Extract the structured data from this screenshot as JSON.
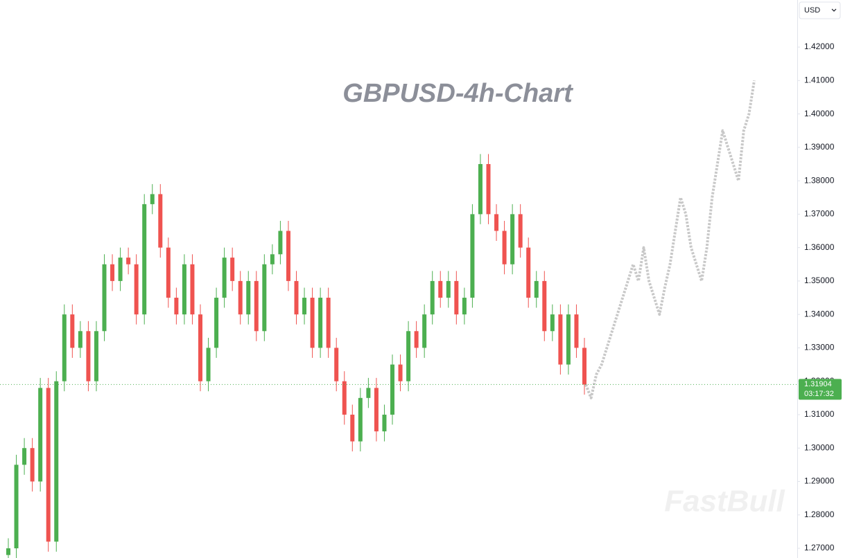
{
  "chart_data": {
    "type": "candlestick",
    "title": "GBPUSD-4h-Chart",
    "currency": "USD",
    "watermark": "FastBull",
    "ylim": [
      1.2671,
      1.4341
    ],
    "yticks": [
      {
        "value": 1.27,
        "label": "1.27000"
      },
      {
        "value": 1.28,
        "label": "1.28000"
      },
      {
        "value": 1.29,
        "label": "1.29000"
      },
      {
        "value": 1.3,
        "label": "1.30000"
      },
      {
        "value": 1.31,
        "label": "1.31000"
      },
      {
        "value": 1.32,
        "label": "1.32000"
      },
      {
        "value": 1.33,
        "label": "1.33000"
      },
      {
        "value": 1.34,
        "label": "1.34000"
      },
      {
        "value": 1.35,
        "label": "1.35000"
      },
      {
        "value": 1.36,
        "label": "1.36000"
      },
      {
        "value": 1.37,
        "label": "1.37000"
      },
      {
        "value": 1.38,
        "label": "1.38000"
      },
      {
        "value": 1.39,
        "label": "1.39000"
      },
      {
        "value": 1.4,
        "label": "1.40000"
      },
      {
        "value": 1.41,
        "label": "1.41000"
      },
      {
        "value": 1.42,
        "label": "1.42000"
      }
    ],
    "series": {
      "color_up": "#4caf50",
      "color_down": "#ef5350",
      "open": [
        1.268,
        1.27,
        1.295,
        1.3,
        1.29,
        1.318,
        1.272,
        1.32,
        1.34,
        1.33,
        1.335,
        1.32,
        1.335,
        1.355,
        1.35,
        1.357,
        1.355,
        1.34,
        1.373,
        1.376,
        1.36,
        1.345,
        1.34,
        1.355,
        1.34,
        1.32,
        1.33,
        1.345,
        1.357,
        1.35,
        1.34,
        1.35,
        1.335,
        1.355,
        1.358,
        1.365,
        1.35,
        1.34,
        1.345,
        1.33,
        1.345,
        1.33,
        1.32,
        1.31,
        1.302,
        1.315,
        1.318,
        1.305,
        1.31,
        1.325,
        1.32,
        1.335,
        1.33,
        1.34,
        1.35,
        1.345,
        1.35,
        1.34,
        1.345,
        1.37,
        1.385,
        1.37,
        1.365,
        1.355,
        1.37,
        1.36,
        1.345,
        1.35,
        1.335,
        1.34,
        1.325,
        1.34,
        1.33
      ],
      "high": [
        1.273,
        1.298,
        1.303,
        1.303,
        1.321,
        1.321,
        1.323,
        1.343,
        1.343,
        1.338,
        1.338,
        1.338,
        1.358,
        1.358,
        1.36,
        1.36,
        1.358,
        1.376,
        1.379,
        1.379,
        1.363,
        1.348,
        1.358,
        1.358,
        1.343,
        1.333,
        1.348,
        1.36,
        1.36,
        1.353,
        1.353,
        1.353,
        1.358,
        1.361,
        1.368,
        1.368,
        1.353,
        1.348,
        1.348,
        1.348,
        1.348,
        1.333,
        1.323,
        1.313,
        1.318,
        1.321,
        1.321,
        1.313,
        1.328,
        1.328,
        1.338,
        1.338,
        1.343,
        1.353,
        1.353,
        1.353,
        1.353,
        1.348,
        1.373,
        1.388,
        1.388,
        1.373,
        1.368,
        1.373,
        1.373,
        1.363,
        1.353,
        1.353,
        1.343,
        1.343,
        1.343,
        1.343,
        1.333
      ],
      "low": [
        1.265,
        1.267,
        1.292,
        1.287,
        1.287,
        1.269,
        1.269,
        1.317,
        1.327,
        1.327,
        1.317,
        1.317,
        1.332,
        1.347,
        1.347,
        1.352,
        1.337,
        1.337,
        1.37,
        1.357,
        1.342,
        1.337,
        1.337,
        1.337,
        1.317,
        1.317,
        1.327,
        1.342,
        1.347,
        1.337,
        1.337,
        1.332,
        1.332,
        1.352,
        1.355,
        1.347,
        1.337,
        1.337,
        1.327,
        1.327,
        1.327,
        1.317,
        1.307,
        1.299,
        1.299,
        1.312,
        1.302,
        1.302,
        1.307,
        1.317,
        1.317,
        1.327,
        1.327,
        1.337,
        1.342,
        1.342,
        1.337,
        1.337,
        1.342,
        1.367,
        1.367,
        1.362,
        1.352,
        1.352,
        1.357,
        1.342,
        1.342,
        1.332,
        1.332,
        1.322,
        1.322,
        1.327,
        1.316
      ],
      "close": [
        1.27,
        1.295,
        1.3,
        1.29,
        1.318,
        1.272,
        1.32,
        1.34,
        1.33,
        1.335,
        1.32,
        1.335,
        1.355,
        1.35,
        1.357,
        1.355,
        1.34,
        1.373,
        1.376,
        1.36,
        1.345,
        1.34,
        1.355,
        1.34,
        1.32,
        1.33,
        1.345,
        1.357,
        1.35,
        1.34,
        1.35,
        1.335,
        1.355,
        1.358,
        1.365,
        1.35,
        1.34,
        1.345,
        1.33,
        1.345,
        1.33,
        1.32,
        1.31,
        1.302,
        1.315,
        1.318,
        1.305,
        1.31,
        1.325,
        1.32,
        1.335,
        1.33,
        1.34,
        1.35,
        1.345,
        1.35,
        1.34,
        1.345,
        1.37,
        1.385,
        1.37,
        1.365,
        1.355,
        1.37,
        1.36,
        1.345,
        1.35,
        1.335,
        1.34,
        1.325,
        1.34,
        1.33,
        1.319
      ]
    },
    "projection": {
      "color": "#c8c8c8",
      "values": [
        1.319,
        1.315,
        1.322,
        1.325,
        1.33,
        1.335,
        1.34,
        1.345,
        1.35,
        1.355,
        1.35,
        1.36,
        1.35,
        1.345,
        1.34,
        1.348,
        1.355,
        1.365,
        1.375,
        1.37,
        1.36,
        1.355,
        1.35,
        1.36,
        1.375,
        1.385,
        1.395,
        1.39,
        1.385,
        1.38,
        1.395,
        1.4,
        1.41
      ]
    },
    "last_price": {
      "value": 1.31904,
      "label": "1.31904"
    },
    "last_price_color": "#4caf50",
    "countdown": "03:17:32"
  }
}
